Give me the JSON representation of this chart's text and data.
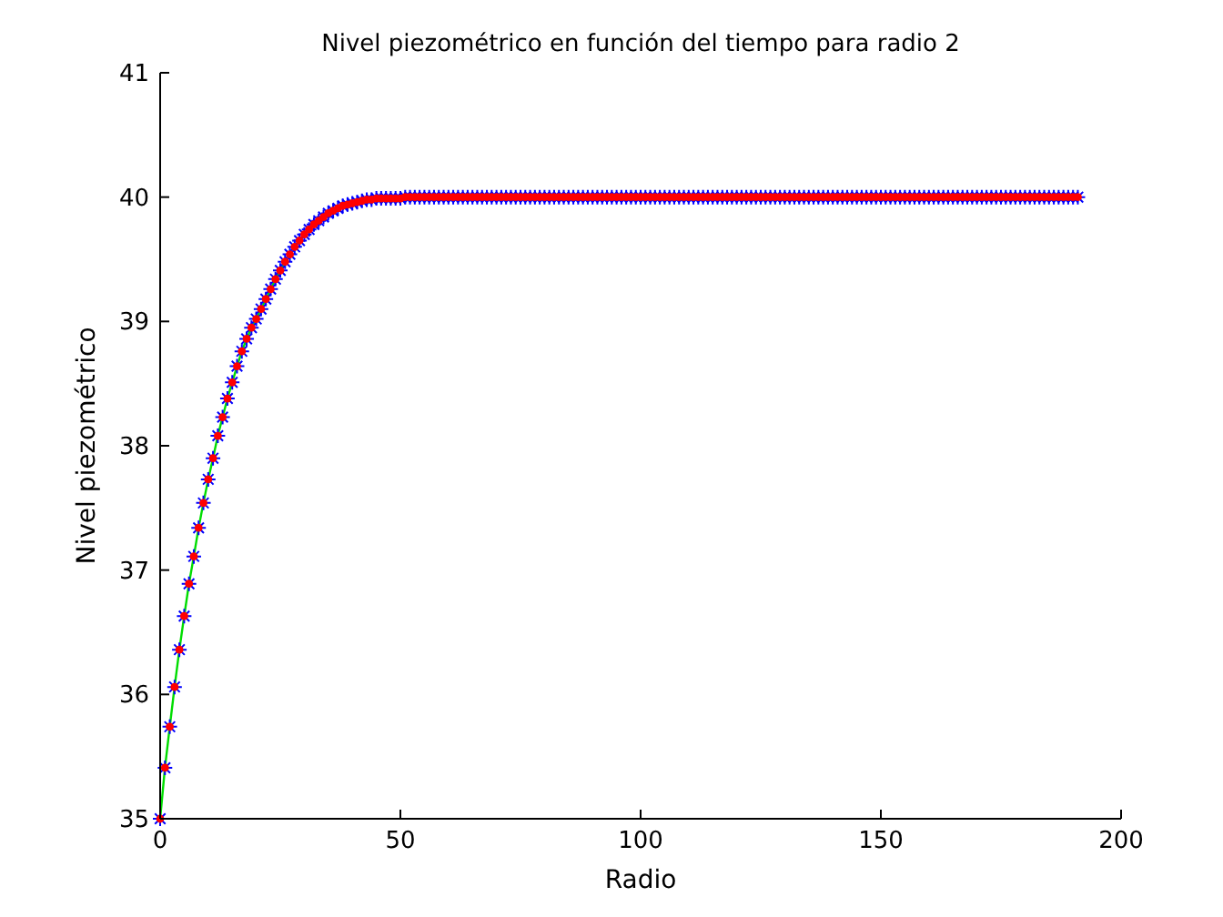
{
  "chart_data": {
    "type": "line",
    "title": "Nivel piezométrico en función del tiempo para radio 2",
    "xlabel": "Radio",
    "ylabel": "Nivel piezométrico",
    "x": [
      0,
      1,
      2,
      3,
      4,
      5,
      6,
      7,
      8,
      9,
      10,
      11,
      12,
      13,
      14,
      15,
      16,
      17,
      18,
      19,
      20,
      21,
      22,
      23,
      24,
      25,
      26,
      27,
      28,
      29,
      30,
      31,
      32,
      33,
      34,
      35,
      36,
      37,
      38,
      39,
      40,
      41,
      42,
      43,
      44,
      45,
      46,
      47,
      48,
      49,
      50,
      51,
      52,
      53,
      54,
      55,
      56,
      57,
      58,
      59,
      60,
      61,
      62,
      63,
      64,
      65,
      66,
      67,
      68,
      69,
      70,
      71,
      72,
      73,
      74,
      75,
      76,
      77,
      78,
      79,
      80,
      81,
      82,
      83,
      84,
      85,
      86,
      87,
      88,
      89,
      90,
      91,
      92,
      93,
      94,
      95,
      96,
      97,
      98,
      99,
      100,
      101,
      102,
      103,
      104,
      105,
      106,
      107,
      108,
      109,
      110,
      111,
      112,
      113,
      114,
      115,
      116,
      117,
      118,
      119,
      120,
      121,
      122,
      123,
      124,
      125,
      126,
      127,
      128,
      129,
      130,
      131,
      132,
      133,
      134,
      135,
      136,
      137,
      138,
      139,
      140,
      141,
      142,
      143,
      144,
      145,
      146,
      147,
      148,
      149,
      150,
      151,
      152,
      153,
      154,
      155,
      156,
      157,
      158,
      159,
      160,
      161,
      162,
      163,
      164,
      165,
      166,
      167,
      168,
      169,
      170,
      171,
      172,
      173,
      174,
      175,
      176,
      177,
      178,
      179,
      180,
      181,
      182,
      183,
      184,
      185,
      186,
      187,
      188,
      189,
      190,
      191
    ],
    "series": [
      {
        "color": "#00dd00",
        "line_style": "solid",
        "marker": "none",
        "x": [
          0,
          1,
          2,
          3,
          4,
          5,
          6,
          7,
          8,
          9,
          10,
          11,
          12,
          13,
          14,
          15,
          16,
          17,
          18,
          19,
          20,
          21,
          22,
          23,
          24,
          25,
          26
        ],
        "values": [
          35.0,
          35.41,
          35.74,
          36.06,
          36.36,
          36.63,
          36.89,
          37.11,
          37.34,
          37.54,
          37.73,
          37.9,
          38.08,
          38.23,
          38.38,
          38.51,
          38.64,
          38.76,
          38.86,
          38.95,
          39.02,
          39.1,
          39.18,
          39.26,
          39.34,
          39.41,
          39.48
        ]
      },
      {
        "type": "scatter",
        "color": "#0000ff",
        "marker": "cross",
        "values": [
          35.0,
          35.41,
          35.74,
          36.06,
          36.36,
          36.63,
          36.89,
          37.11,
          37.34,
          37.54,
          37.73,
          37.9,
          38.08,
          38.23,
          38.38,
          38.51,
          38.64,
          38.76,
          38.86,
          38.95,
          39.02,
          39.1,
          39.18,
          39.26,
          39.34,
          39.41,
          39.48,
          39.54,
          39.6,
          39.65,
          39.7,
          39.74,
          39.78,
          39.81,
          39.84,
          39.87,
          39.89,
          39.91,
          39.93,
          39.94,
          39.95,
          39.96,
          39.97,
          39.98,
          39.98,
          39.99,
          39.99,
          39.99,
          39.99,
          39.99,
          39.99,
          40,
          40,
          40,
          40,
          40,
          40,
          40,
          40,
          40,
          40,
          40,
          40,
          40,
          40,
          40,
          40,
          40,
          40,
          40,
          40,
          40,
          40,
          40,
          40,
          40,
          40,
          40,
          40,
          40,
          40,
          40,
          40,
          40,
          40,
          40,
          40,
          40,
          40,
          40,
          40,
          40,
          40,
          40,
          40,
          40,
          40,
          40,
          40,
          40,
          40,
          40,
          40,
          40,
          40,
          40,
          40,
          40,
          40,
          40,
          40,
          40,
          40,
          40,
          40,
          40,
          40,
          40,
          40,
          40,
          40,
          40,
          40,
          40,
          40,
          40,
          40,
          40,
          40,
          40,
          40,
          40,
          40,
          40,
          40,
          40,
          40,
          40,
          40,
          40,
          40,
          40,
          40,
          40,
          40,
          40,
          40,
          40,
          40,
          40,
          40,
          40,
          40,
          40,
          40,
          40,
          40,
          40,
          40,
          40,
          40,
          40,
          40,
          40,
          40,
          40,
          40,
          40,
          40,
          40,
          40,
          40,
          40,
          40,
          40,
          40,
          40,
          40,
          40,
          40,
          40,
          40,
          40,
          40,
          40,
          40,
          40,
          40,
          40,
          40,
          40,
          40
        ]
      },
      {
        "type": "scatter",
        "color": "#ff0000",
        "marker": "circle",
        "values": [
          35.0,
          35.41,
          35.74,
          36.06,
          36.36,
          36.63,
          36.89,
          37.11,
          37.34,
          37.54,
          37.73,
          37.9,
          38.08,
          38.23,
          38.38,
          38.51,
          38.64,
          38.76,
          38.86,
          38.95,
          39.02,
          39.1,
          39.18,
          39.26,
          39.34,
          39.41,
          39.48,
          39.54,
          39.6,
          39.65,
          39.7,
          39.74,
          39.78,
          39.81,
          39.84,
          39.87,
          39.89,
          39.91,
          39.93,
          39.94,
          39.95,
          39.96,
          39.97,
          39.98,
          39.98,
          39.99,
          39.99,
          39.99,
          39.99,
          39.99,
          39.99,
          40,
          40,
          40,
          40,
          40,
          40,
          40,
          40,
          40,
          40,
          40,
          40,
          40,
          40,
          40,
          40,
          40,
          40,
          40,
          40,
          40,
          40,
          40,
          40,
          40,
          40,
          40,
          40,
          40,
          40,
          40,
          40,
          40,
          40,
          40,
          40,
          40,
          40,
          40,
          40,
          40,
          40,
          40,
          40,
          40,
          40,
          40,
          40,
          40,
          40,
          40,
          40,
          40,
          40,
          40,
          40,
          40,
          40,
          40,
          40,
          40,
          40,
          40,
          40,
          40,
          40,
          40,
          40,
          40,
          40,
          40,
          40,
          40,
          40,
          40,
          40,
          40,
          40,
          40,
          40,
          40,
          40,
          40,
          40,
          40,
          40,
          40,
          40,
          40,
          40,
          40,
          40,
          40,
          40,
          40,
          40,
          40,
          40,
          40,
          40,
          40,
          40,
          40,
          40,
          40,
          40,
          40,
          40,
          40,
          40,
          40,
          40,
          40,
          40,
          40,
          40,
          40,
          40,
          40,
          40,
          40,
          40,
          40,
          40,
          40,
          40,
          40,
          40,
          40,
          40,
          40,
          40,
          40,
          40,
          40,
          40,
          40,
          40,
          40,
          40,
          40
        ]
      }
    ],
    "xlim": [
      0,
      200
    ],
    "xticks": [
      0,
      50,
      100,
      150,
      200
    ],
    "ylim": [
      35,
      41
    ],
    "yticks": [
      35,
      36,
      37,
      38,
      39,
      40,
      41
    ]
  }
}
